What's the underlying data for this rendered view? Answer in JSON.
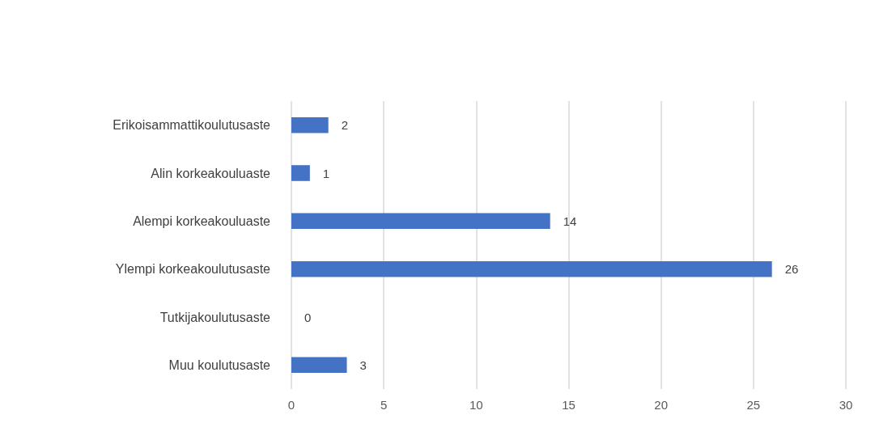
{
  "chart_data": {
    "type": "bar",
    "orientation": "horizontal",
    "categories": [
      "Erikoisammattikoulutusaste",
      "Alin korkeakouluaste",
      "Alempi korkeakouluaste",
      "Ylempi korkeakoulutusaste",
      "Tutkijakoulutusaste",
      "Muu koulutusaste"
    ],
    "values": [
      2,
      1,
      14,
      26,
      0,
      3
    ],
    "color": "#4472c4",
    "xlim": [
      0,
      30
    ],
    "xticks": [
      0,
      5,
      10,
      15,
      20,
      25,
      30
    ],
    "grid": "x",
    "data_labels": true
  }
}
